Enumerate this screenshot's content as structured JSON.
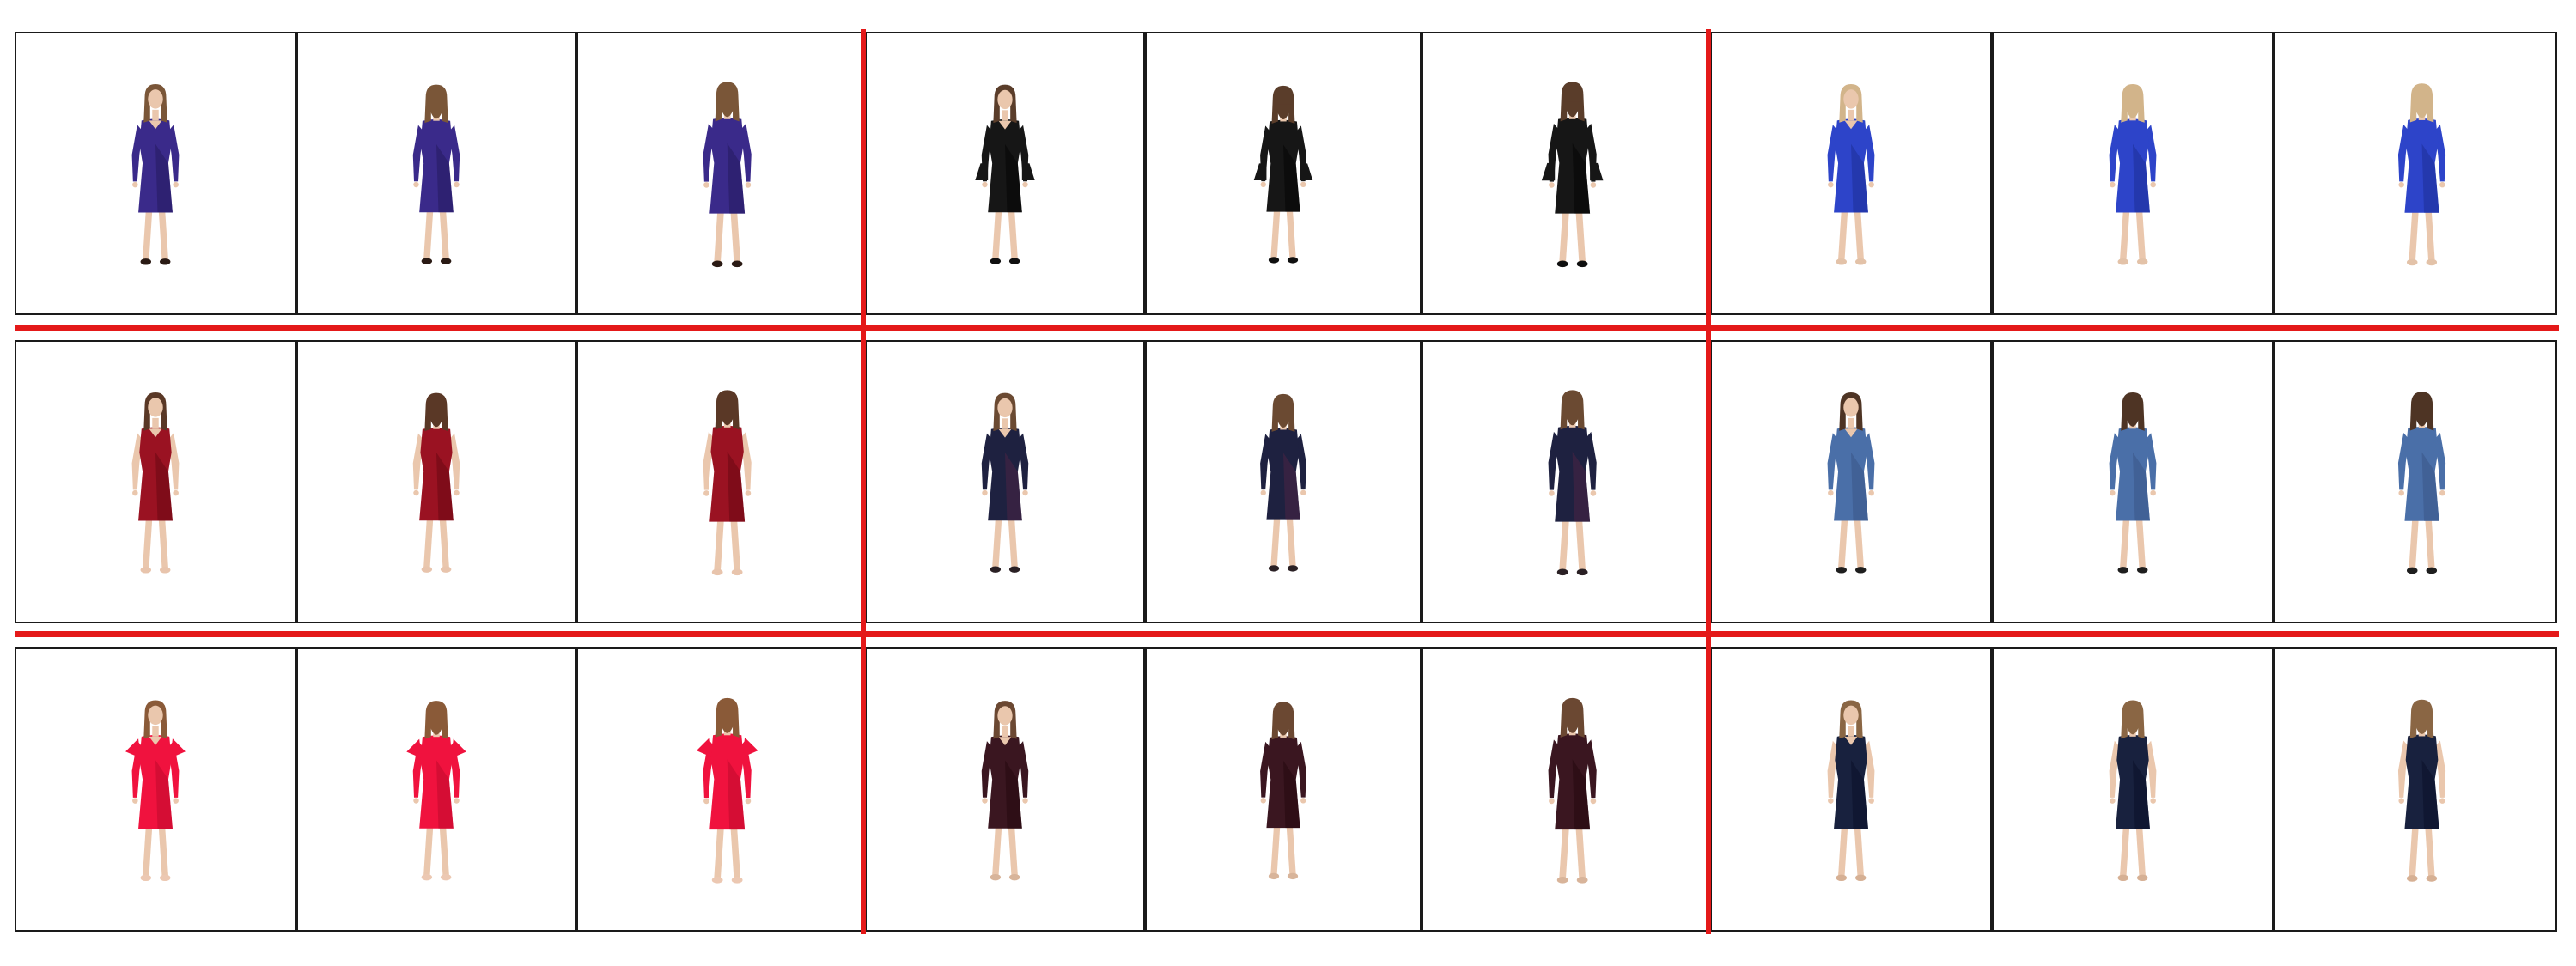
{
  "figure": {
    "separator_color": "#e41919",
    "cell_border_color": "#1a1a1a",
    "groups": [
      {
        "row": 0,
        "col": 0,
        "dress_color": "#3a2a8a",
        "dress_shade": "#24195e",
        "hair": "#7a5638",
        "style": "sleeve-long",
        "shoes": "#2a1a14"
      },
      {
        "row": 0,
        "col": 1,
        "dress_color": "#161616",
        "dress_shade": "#050505",
        "hair": "#5a3d2a",
        "style": "sleeve-bell",
        "shoes": "#0f0f0f"
      },
      {
        "row": 0,
        "col": 2,
        "dress_color": "#2d44c9",
        "dress_shade": "#1d2f96",
        "hair": "#d2b48a",
        "style": "sleeve-long",
        "shoes": "#e3c2a8"
      },
      {
        "row": 1,
        "col": 0,
        "dress_color": "#9a1222",
        "dress_shade": "#6a0812",
        "hair": "#5a3826",
        "style": "sleeveless",
        "shoes": "#e8c4ac"
      },
      {
        "row": 1,
        "col": 1,
        "dress_color": "#1e2140",
        "dress_shade": "#4a2544",
        "hair": "#6b4a32",
        "style": "sleeve-long",
        "shoes": "#2a2024"
      },
      {
        "row": 1,
        "col": 2,
        "dress_color": "#4a6fa8",
        "dress_shade": "#3a5686",
        "hair": "#4e3424",
        "style": "sleeve-long",
        "shoes": "#1e1e1e"
      },
      {
        "row": 2,
        "col": 0,
        "dress_color": "#f0123e",
        "dress_shade": "#c00a2c",
        "hair": "#8a5a38",
        "style": "sleeve-flutter",
        "shoes": "#ecc8b2"
      },
      {
        "row": 2,
        "col": 1,
        "dress_color": "#3a1620",
        "dress_shade": "#24090f",
        "hair": "#6b4832",
        "style": "sleeve-long",
        "shoes": "#d8b49a"
      },
      {
        "row": 2,
        "col": 2,
        "dress_color": "#18213e",
        "dress_shade": "#0b1128",
        "hair": "#8a6644",
        "style": "sleeveless",
        "shoes": "#d6b094"
      }
    ],
    "views": [
      "front",
      "back",
      "back-side"
    ],
    "skin_color": "#eac7ad"
  }
}
